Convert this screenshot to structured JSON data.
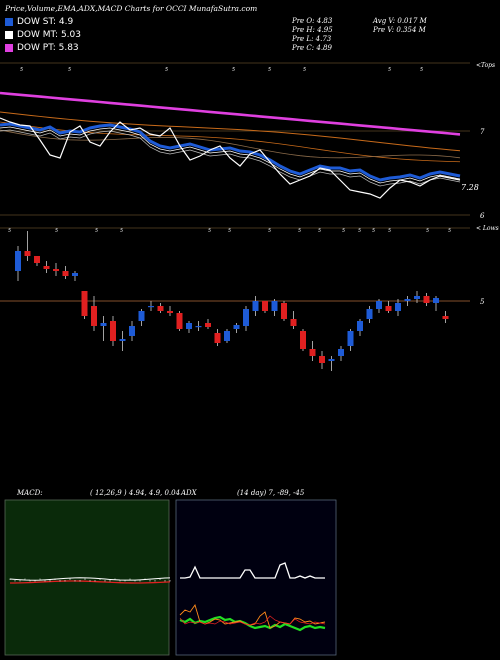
{
  "header": {
    "title": "Price,Volume,EMA,ADX,MACD Charts for OCCI MunafaSutra.com"
  },
  "legend": [
    {
      "label": "DOW ST: 4.9",
      "color": "#1e5bd6"
    },
    {
      "label": "DOW MT: 5.03",
      "color": "#ffffff"
    },
    {
      "label": "DOW PT: 5.83",
      "color": "#e040e0"
    }
  ],
  "info": {
    "o": "Pre  O: 4.83",
    "h": "Pre  H: 4.95",
    "l": "Pre  L: 4.73",
    "c": "Pre  C: 4.89",
    "avgv": "Avg V: 0.017 M",
    "prev": "Pre  V: 0.354  M"
  },
  "price_panel": {
    "right_top": "<Tops",
    "right_mid": "7",
    "right_low": "6",
    "current_price": "7.28",
    "tick_marks": "5",
    "candle_right_top": "< Lows",
    "candle_right_mid": "5"
  },
  "macd": {
    "title": "MACD:",
    "params": "( 12,26,9 ) 4.94,  4.9,  0.04"
  },
  "adx": {
    "title": "ADX",
    "params": "(14  day) 7,  -89,  -45"
  },
  "chart_data": [
    {
      "type": "line",
      "title": "Price,Volume,EMA,ADX,MACD Charts for OCCI MunafaSutra.com",
      "series": [
        {
          "name": "DOW ST: 4.9",
          "color": "#1e5bd6"
        },
        {
          "name": "DOW MT: 5.03",
          "color": "#ffffff"
        },
        {
          "name": "DOW PT: 5.83",
          "color": "#e040e0"
        }
      ],
      "y_ticks": [
        "7",
        "6"
      ],
      "last_value": 7.28
    },
    {
      "type": "candlestick",
      "y_tick": "5",
      "candles": [
        [
          5.3,
          5.55,
          5.2,
          5.5
        ],
        [
          5.5,
          5.7,
          5.4,
          5.45
        ],
        [
          5.45,
          5.45,
          5.35,
          5.38
        ],
        [
          5.35,
          5.4,
          5.28,
          5.32
        ],
        [
          5.32,
          5.38,
          5.25,
          5.3
        ],
        [
          5.3,
          5.35,
          5.22,
          5.25
        ],
        [
          5.25,
          5.3,
          5.2,
          5.28
        ],
        [
          5.1,
          5.1,
          4.82,
          4.85
        ],
        [
          4.95,
          5.05,
          4.7,
          4.75
        ],
        [
          4.75,
          4.85,
          4.6,
          4.78
        ],
        [
          4.8,
          4.85,
          4.55,
          4.6
        ],
        [
          4.6,
          4.7,
          4.5,
          4.62
        ],
        [
          4.65,
          4.8,
          4.6,
          4.75
        ],
        [
          4.8,
          4.92,
          4.75,
          4.9
        ],
        [
          4.95,
          5.0,
          4.9,
          4.95
        ],
        [
          4.95,
          4.98,
          4.88,
          4.9
        ],
        [
          4.9,
          4.95,
          4.85,
          4.88
        ],
        [
          4.88,
          4.9,
          4.7,
          4.72
        ],
        [
          4.72,
          4.8,
          4.68,
          4.78
        ],
        [
          4.75,
          4.8,
          4.7,
          4.75
        ],
        [
          4.78,
          4.82,
          4.72,
          4.74
        ],
        [
          4.68,
          4.72,
          4.55,
          4.58
        ],
        [
          4.6,
          4.72,
          4.58,
          4.7
        ],
        [
          4.72,
          4.78,
          4.68,
          4.76
        ],
        [
          4.75,
          4.95,
          4.7,
          4.92
        ],
        [
          4.9,
          5.05,
          4.85,
          5.0
        ],
        [
          5.0,
          5.0,
          4.88,
          4.9
        ],
        [
          4.9,
          5.02,
          4.85,
          5.0
        ],
        [
          4.98,
          5.0,
          4.8,
          4.82
        ],
        [
          4.82,
          4.9,
          4.72,
          4.75
        ],
        [
          4.7,
          4.72,
          4.5,
          4.52
        ],
        [
          4.52,
          4.6,
          4.4,
          4.45
        ],
        [
          4.45,
          4.5,
          4.32,
          4.38
        ],
        [
          4.4,
          4.45,
          4.3,
          4.42
        ],
        [
          4.45,
          4.55,
          4.4,
          4.52
        ],
        [
          4.55,
          4.72,
          4.5,
          4.7
        ],
        [
          4.7,
          4.82,
          4.65,
          4.8
        ],
        [
          4.82,
          4.95,
          4.78,
          4.92
        ],
        [
          4.92,
          5.02,
          4.88,
          5.0
        ],
        [
          4.95,
          5.0,
          4.88,
          4.9
        ],
        [
          4.9,
          5.02,
          4.85,
          4.98
        ],
        [
          5.0,
          5.05,
          4.95,
          5.02
        ],
        [
          5.02,
          5.1,
          4.98,
          5.05
        ],
        [
          5.05,
          5.08,
          4.95,
          4.98
        ],
        [
          4.98,
          5.05,
          4.9,
          5.03
        ],
        [
          4.85,
          4.9,
          4.78,
          4.82
        ]
      ]
    },
    {
      "type": "line",
      "title": "MACD: ( 12,26,9 ) 4.94,  4.9,  0.04"
    },
    {
      "type": "line",
      "title": "ADX (14  day) 7,  -89,  -45"
    }
  ]
}
